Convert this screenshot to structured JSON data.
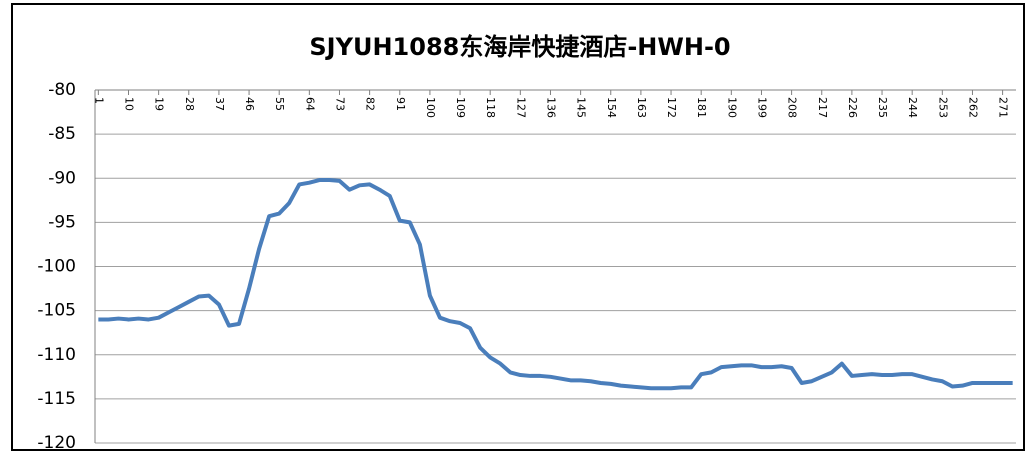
{
  "chart_data": {
    "type": "line",
    "title": "SJYUH1088东海岸快捷酒店-HWH-0",
    "x": [
      1,
      4,
      7,
      10,
      13,
      16,
      19,
      22,
      25,
      28,
      31,
      34,
      37,
      40,
      43,
      46,
      49,
      52,
      55,
      58,
      61,
      64,
      67,
      70,
      73,
      76,
      79,
      82,
      85,
      88,
      91,
      94,
      97,
      100,
      103,
      106,
      109,
      112,
      115,
      118,
      121,
      124,
      127,
      130,
      133,
      136,
      139,
      142,
      145,
      148,
      151,
      154,
      157,
      160,
      163,
      166,
      169,
      172,
      175,
      178,
      181,
      184,
      187,
      190,
      193,
      196,
      199,
      202,
      205,
      208,
      211,
      214,
      217,
      220,
      223,
      226,
      229,
      232,
      235,
      238,
      241,
      244,
      247,
      250,
      253,
      256,
      259,
      262,
      265,
      268,
      271,
      274
    ],
    "values": [
      -106,
      -106,
      -105.9,
      -106,
      -105.9,
      -106,
      -105.8,
      -105.2,
      -104.6,
      -104,
      -103.4,
      -103.3,
      -104.3,
      -106.7,
      -106.5,
      -102.5,
      -98,
      -94.3,
      -94,
      -92.8,
      -90.7,
      -90.5,
      -90.2,
      -90.2,
      -90.3,
      -91.3,
      -90.8,
      -90.7,
      -91.3,
      -92,
      -94.8,
      -95,
      -97.5,
      -103.3,
      -105.8,
      -106.2,
      -106.4,
      -107,
      -109.2,
      -110.3,
      -111,
      -112,
      -112.3,
      -112.4,
      -112.4,
      -112.5,
      -112.7,
      -112.9,
      -112.9,
      -113,
      -113.2,
      -113.3,
      -113.5,
      -113.6,
      -113.7,
      -113.8,
      -113.8,
      -113.8,
      -113.7,
      -113.7,
      -112.2,
      -112,
      -111.4,
      -111.3,
      -111.2,
      -111.2,
      -111.4,
      -111.4,
      -111.3,
      -111.5,
      -113.2,
      -113,
      -112.5,
      -112,
      -111,
      -112.4,
      -112.3,
      -112.2,
      -112.3,
      -112.3,
      -112.2,
      -112.2,
      -112.5,
      -112.8,
      -113,
      -113.6,
      -113.5,
      -113.2,
      -113.2,
      -113.2,
      -113.2,
      -113.2
    ],
    "color": "#4a7ebb",
    "xlim": [
      0,
      275
    ],
    "xticks": [
      1,
      10,
      19,
      28,
      37,
      46,
      55,
      64,
      73,
      82,
      91,
      100,
      109,
      118,
      127,
      136,
      145,
      154,
      163,
      172,
      181,
      190,
      199,
      208,
      217,
      226,
      235,
      244,
      253,
      262,
      271
    ],
    "ylim": [
      -120,
      -80
    ],
    "yticks": [
      -120,
      -115,
      -110,
      -105,
      -100,
      -95,
      -90,
      -85,
      -80
    ],
    "grid": true
  }
}
